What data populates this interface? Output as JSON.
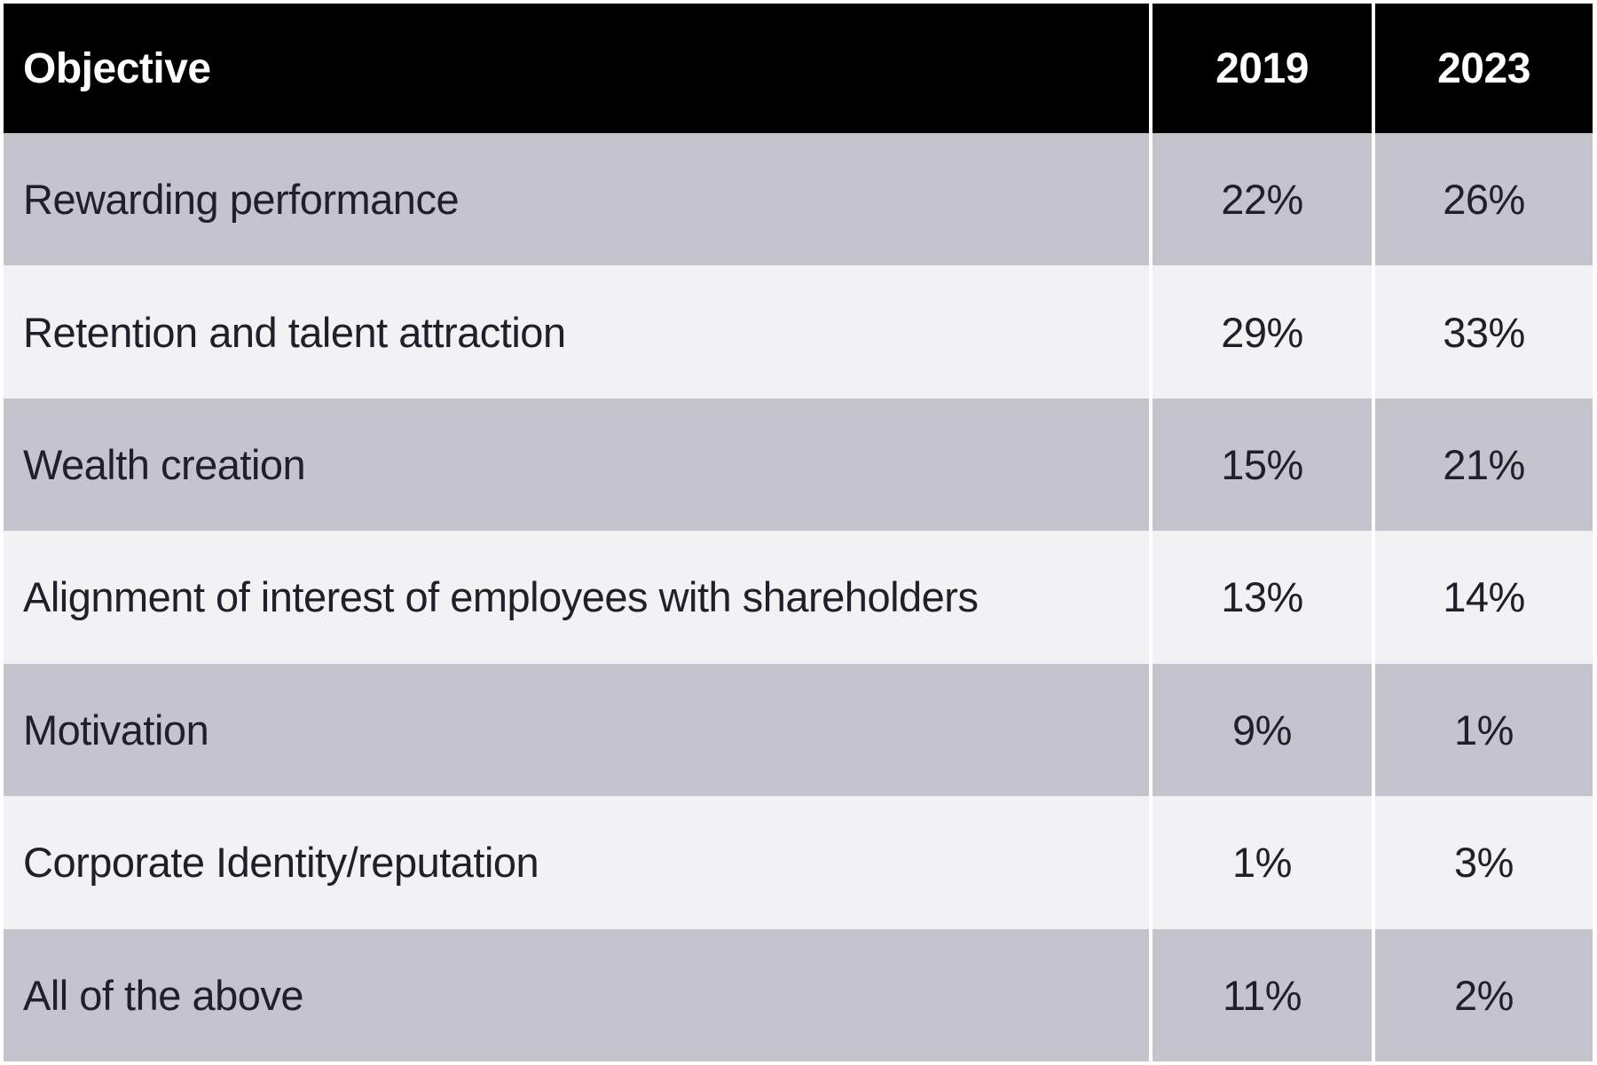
{
  "table": {
    "columns": [
      "Objective",
      "2019",
      "2023"
    ],
    "rows": [
      {
        "objective": "Rewarding performance",
        "y2019": "22%",
        "y2023": "26%"
      },
      {
        "objective": "Retention and talent attraction",
        "y2019": "29%",
        "y2023": "33%"
      },
      {
        "objective": "Wealth creation",
        "y2019": "15%",
        "y2023": "21%"
      },
      {
        "objective": "Alignment of interest of employees with shareholders",
        "y2019": "13%",
        "y2023": "14%"
      },
      {
        "objective": "Motivation",
        "y2019": "9%",
        "y2023": "1%"
      },
      {
        "objective": "Corporate Identity/reputation",
        "y2019": "1%",
        "y2023": "3%"
      },
      {
        "objective": "All of the above",
        "y2019": "11%",
        "y2023": "2%"
      }
    ]
  },
  "colors": {
    "header_bg": "#000000",
    "header_text": "#ffffff",
    "row_gray": "#c5c4cd",
    "row_light": "#f2f1f4",
    "body_text": "#20202a",
    "divider": "#ffffff"
  },
  "chart_data": {
    "type": "table",
    "title": "",
    "columns": [
      "Objective",
      "2019",
      "2023"
    ],
    "categories": [
      "Rewarding performance",
      "Retention and talent attraction",
      "Wealth creation",
      "Alignment of interest of employees with shareholders",
      "Motivation",
      "Corporate Identity/reputation",
      "All of the above"
    ],
    "series": [
      {
        "name": "2019",
        "values": [
          22,
          29,
          15,
          13,
          9,
          1,
          11
        ]
      },
      {
        "name": "2023",
        "values": [
          26,
          33,
          21,
          14,
          1,
          3,
          2
        ]
      }
    ],
    "unit": "%"
  }
}
